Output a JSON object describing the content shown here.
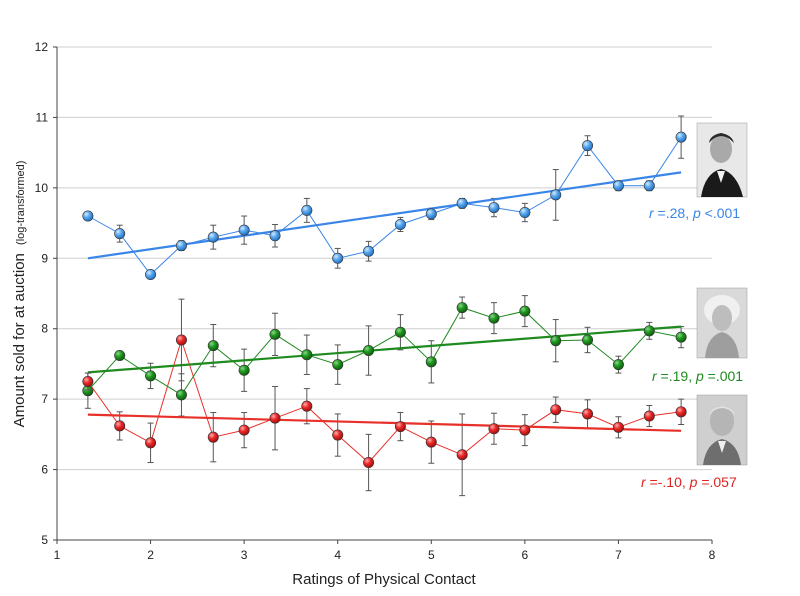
{
  "chart_data": {
    "type": "line",
    "title": "",
    "xlabel": "Ratings of Physical Contact",
    "ylabel": "Amount sold for at auction",
    "ylabel_suffix": "(log-transformed)",
    "xlim": [
      1,
      8
    ],
    "ylim": [
      5,
      12
    ],
    "xticks": [
      "1",
      "2",
      "3",
      "4",
      "5",
      "6",
      "7",
      "8"
    ],
    "yticks": [
      "5",
      "6",
      "7",
      "8",
      "9",
      "10",
      "11",
      "12"
    ],
    "grid": "horizontal",
    "x": [
      1.33,
      1.67,
      2.0,
      2.33,
      2.67,
      3.0,
      3.33,
      3.67,
      4.0,
      4.33,
      4.67,
      5.0,
      5.33,
      5.67,
      6.0,
      6.33,
      6.67,
      7.0,
      7.33,
      7.67
    ],
    "series": [
      {
        "name": "JFK",
        "color": "#3b8fe0",
        "line_color": "#3a86e8",
        "values": [
          9.6,
          9.35,
          8.77,
          9.18,
          9.3,
          9.4,
          9.32,
          9.68,
          9.0,
          9.1,
          9.48,
          9.63,
          9.78,
          9.72,
          9.65,
          9.9,
          10.6,
          10.03,
          10.03,
          10.72
        ],
        "errors": [
          0.0,
          0.12,
          0.05,
          0.07,
          0.17,
          0.2,
          0.16,
          0.17,
          0.14,
          0.14,
          0.1,
          0.08,
          0.07,
          0.13,
          0.13,
          0.36,
          0.14,
          0.07,
          0.07,
          0.3
        ],
        "trend": [
          9.0,
          10.22
        ],
        "annotation": {
          "r_label": "r",
          "r_value": " =.28, ",
          "p_label": "p",
          "p_value": " <.001"
        }
      },
      {
        "name": "Marilyn Monroe",
        "color": "#1a8a1a",
        "line_color": "#1f8a1f",
        "values": [
          7.12,
          7.62,
          7.33,
          7.06,
          7.76,
          7.41,
          7.92,
          7.63,
          7.49,
          7.69,
          7.95,
          7.53,
          8.3,
          8.15,
          8.25,
          7.83,
          7.84,
          7.49,
          7.97,
          7.88
        ],
        "errors": [
          0.25,
          0.06,
          0.18,
          0.3,
          0.3,
          0.3,
          0.3,
          0.28,
          0.28,
          0.35,
          0.25,
          0.3,
          0.15,
          0.22,
          0.22,
          0.3,
          0.18,
          0.12,
          0.12,
          0.15
        ],
        "trend": [
          7.38,
          8.03
        ],
        "annotation": {
          "r_label": "r",
          "r_value": " =.19, ",
          "p_label": "p",
          "p_value": " =.001"
        }
      },
      {
        "name": "Bernie Madoff",
        "color": "#e02424",
        "line_color": "#e8302a",
        "values": [
          7.25,
          6.62,
          6.38,
          7.84,
          6.46,
          6.56,
          6.73,
          6.9,
          6.49,
          6.1,
          6.61,
          6.39,
          6.21,
          6.58,
          6.56,
          6.85,
          6.79,
          6.6,
          6.76,
          6.82
        ],
        "errors": [
          0.12,
          0.2,
          0.28,
          0.58,
          0.35,
          0.25,
          0.45,
          0.25,
          0.3,
          0.4,
          0.2,
          0.3,
          0.58,
          0.22,
          0.22,
          0.18,
          0.2,
          0.15,
          0.15,
          0.18
        ],
        "trend": [
          6.78,
          6.55
        ],
        "annotation": {
          "r_label": "r",
          "r_value": " =-.10, ",
          "p_label": "p",
          "p_value": " =.057"
        }
      }
    ]
  }
}
